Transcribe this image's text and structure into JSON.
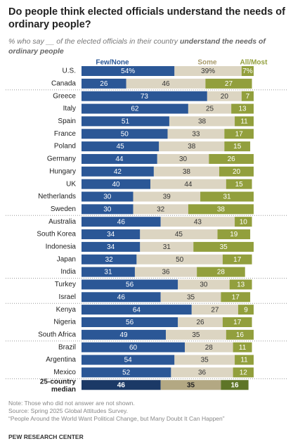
{
  "chart_data": {
    "type": "bar",
    "orientation": "horizontal",
    "stacked": true,
    "title": "Do people think elected officials understand the needs of ordinary people?",
    "subtitle": {
      "text": "% who say __ of the elected officials in their country ",
      "emphasis": "understand the needs of ordinary people"
    },
    "categories": [
      "U.S.",
      "Canada",
      "Greece",
      "Italy",
      "Spain",
      "France",
      "Poland",
      "Germany",
      "Hungary",
      "UK",
      "Netherlands",
      "Sweden",
      "Australia",
      "South Korea",
      "Indonesia",
      "Japan",
      "India",
      "Turkey",
      "Israel",
      "Kenya",
      "Nigeria",
      "South Africa",
      "Brazil",
      "Argentina",
      "Mexico",
      "25-country median"
    ],
    "xlim": [
      0,
      100
    ],
    "series": [
      {
        "name": "Few/None",
        "color": "#2b5796",
        "median_color": "#1b3966",
        "values": [
          54,
          26,
          73,
          62,
          51,
          50,
          45,
          44,
          42,
          40,
          30,
          30,
          46,
          34,
          34,
          32,
          31,
          56,
          46,
          64,
          56,
          49,
          60,
          54,
          52,
          46
        ],
        "value_labels": [
          "54%",
          "26",
          "73",
          "62",
          "51",
          "50",
          "45",
          "44",
          "42",
          "40",
          "30",
          "30",
          "46",
          "34",
          "34",
          "32",
          "31",
          "56",
          "46",
          "64",
          "56",
          "49",
          "60",
          "54",
          "52",
          "46"
        ]
      },
      {
        "name": "Some",
        "color": "#dcd5c2",
        "median_color": "#b3a883",
        "values": [
          39,
          46,
          20,
          25,
          38,
          33,
          38,
          30,
          38,
          44,
          39,
          32,
          43,
          45,
          31,
          50,
          36,
          30,
          35,
          27,
          26,
          35,
          28,
          35,
          36,
          35
        ],
        "value_labels": [
          "39%",
          "46",
          "20",
          "25",
          "38",
          "33",
          "38",
          "30",
          "38",
          "44",
          "39",
          "32",
          "43",
          "45",
          "31",
          "50",
          "36",
          "30",
          "35",
          "27",
          "26",
          "35",
          "28",
          "35",
          "36",
          "35"
        ]
      },
      {
        "name": "All/Most",
        "color": "#929f3d",
        "median_color": "#5e7527",
        "values": [
          7,
          27,
          7,
          13,
          11,
          17,
          15,
          26,
          20,
          15,
          31,
          38,
          10,
          19,
          35,
          17,
          28,
          13,
          17,
          9,
          17,
          16,
          11,
          11,
          12,
          16
        ],
        "value_labels": [
          "7%",
          "27",
          "7",
          "13",
          "11",
          "17",
          "15",
          "26",
          "20",
          "15",
          "31",
          "38",
          "10",
          "19",
          "35",
          "17",
          "28",
          "13",
          "17",
          "9",
          "17",
          "16",
          "11",
          "11",
          "12",
          "16"
        ]
      }
    ],
    "notes": [
      "Note: Those who did not answer are not shown.",
      "Source: Spring 2025 Global Attitudes Survey.",
      "“People Around the World Want Political Change, but Many Doubt It Can Happen”"
    ],
    "source": "PEW RESEARCH CENTER"
  }
}
